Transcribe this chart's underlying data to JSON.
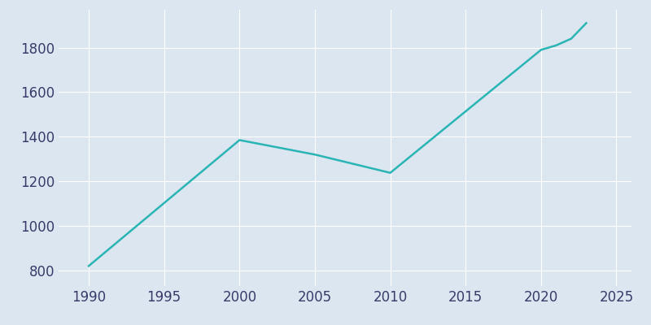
{
  "years": [
    1990,
    2000,
    2005,
    2010,
    2020,
    2021,
    2022,
    2023
  ],
  "population": [
    820,
    1385,
    1320,
    1238,
    1790,
    1810,
    1840,
    1910
  ],
  "line_color": "#2ab5b5",
  "plot_bg_color": "#dce6f0",
  "fig_bg_color": "#dce6f0",
  "grid_color": "#ffffff",
  "tick_color": "#3a3a6a",
  "xlim": [
    1988,
    2026
  ],
  "ylim": [
    730,
    1970
  ],
  "xticks": [
    1990,
    1995,
    2000,
    2005,
    2010,
    2015,
    2020,
    2025
  ],
  "yticks": [
    800,
    1000,
    1200,
    1400,
    1600,
    1800
  ],
  "linewidth": 1.8,
  "tick_fontsize": 12
}
